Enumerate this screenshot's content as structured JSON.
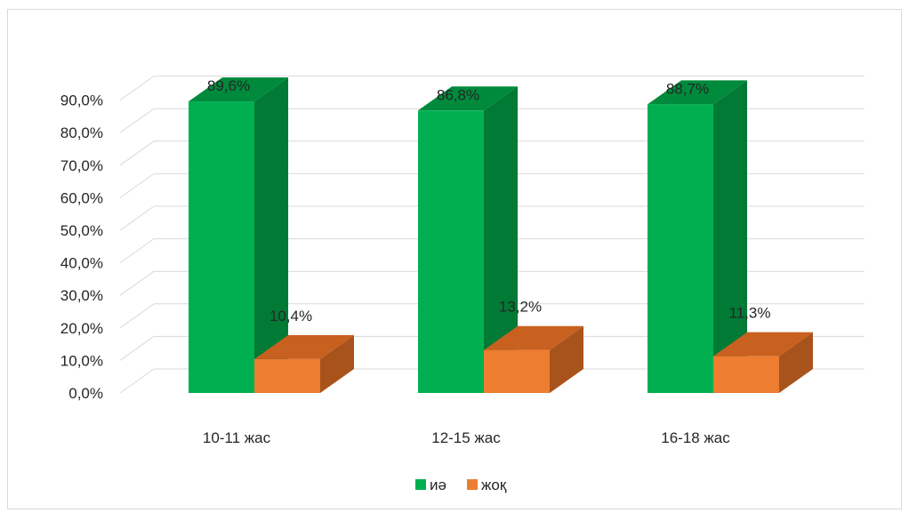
{
  "chart_data": {
    "type": "bar",
    "categories": [
      "10-11 жас",
      "12-15 жас",
      "16-18 жас"
    ],
    "series": [
      {
        "name": "иә",
        "values": [
          89.6,
          86.8,
          88.7
        ],
        "labels": [
          "89,6%",
          "86,8%",
          "88,7%"
        ],
        "color": "#00b050",
        "side_color": "#007a35",
        "top_color": "#008a3c"
      },
      {
        "name": "жоқ",
        "values": [
          10.4,
          13.2,
          11.3
        ],
        "labels": [
          "10,4%",
          "13,2%",
          "11,3%"
        ],
        "color": "#ed7d31",
        "side_color": "#a9531c",
        "top_color": "#c8601f"
      }
    ],
    "y_ticks": [
      "0,0%",
      "10,0%",
      "20,0%",
      "30,0%",
      "40,0%",
      "50,0%",
      "60,0%",
      "70,0%",
      "80,0%",
      "90,0%"
    ],
    "ylim": [
      0,
      90
    ],
    "grid": true,
    "legend_position": "bottom",
    "style": "3d-clustered-column"
  }
}
